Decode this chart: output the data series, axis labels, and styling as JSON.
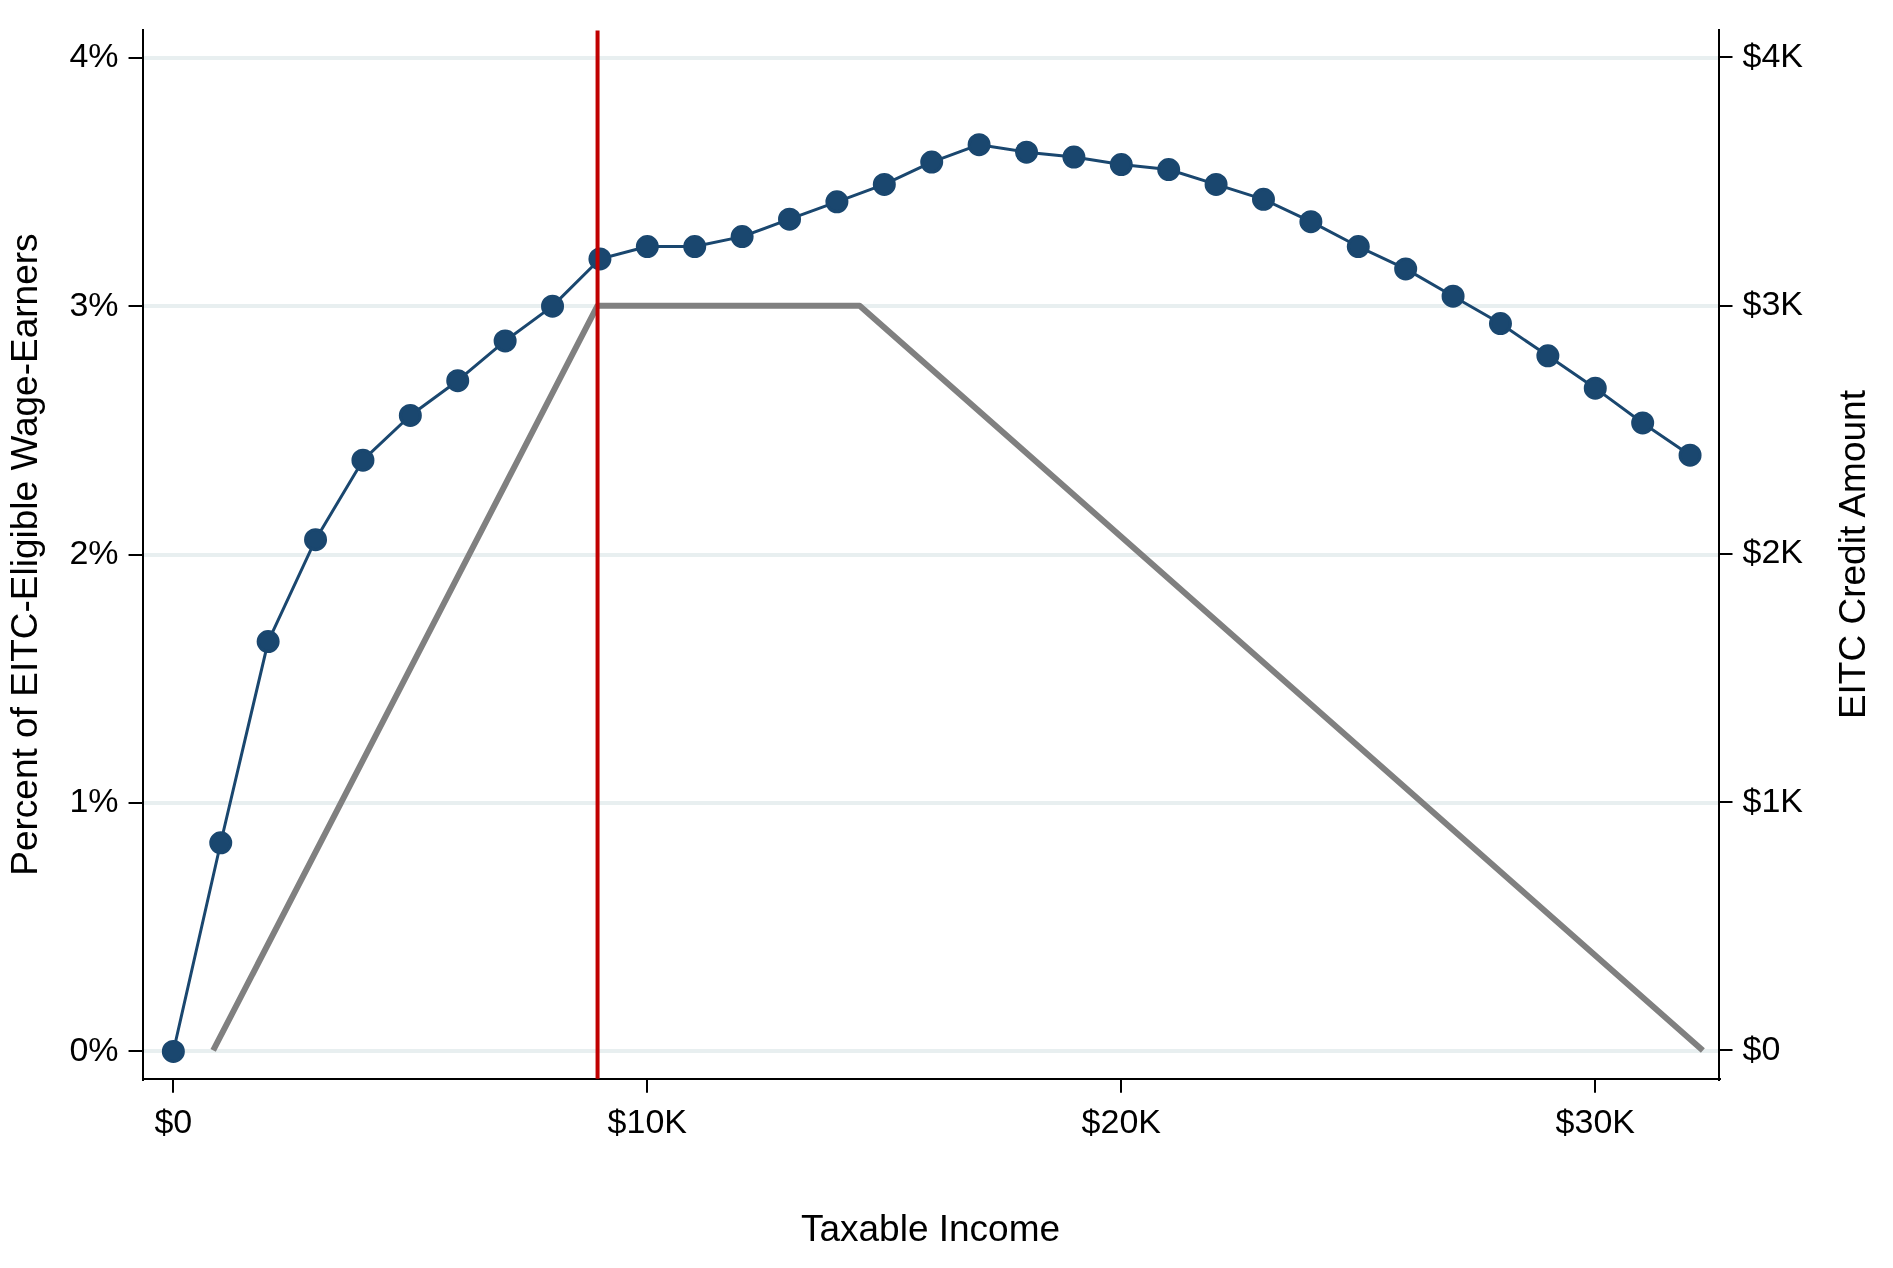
{
  "chart_data": {
    "type": "line",
    "xlabel": "Taxable Income",
    "ylabel": "Percent of EITC-Eligible Wage-Earners",
    "y2label": "EITC Credit Amount",
    "xlim": [
      -650,
      32600
    ],
    "ylim": [
      -0.11,
      4.11
    ],
    "y2lim": [
      -114,
      4109
    ],
    "xticks": [
      {
        "value": 0,
        "label": "$0"
      },
      {
        "value": 10000,
        "label": "$10K"
      },
      {
        "value": 20000,
        "label": "$20K"
      },
      {
        "value": 30000,
        "label": "$30K"
      }
    ],
    "yticks": [
      {
        "value": 0,
        "label": "0%"
      },
      {
        "value": 1,
        "label": "1%"
      },
      {
        "value": 2,
        "label": "2%"
      },
      {
        "value": 3,
        "label": "3%"
      },
      {
        "value": 4,
        "label": "4%"
      }
    ],
    "y2ticks": [
      {
        "value": 0,
        "label": "$0"
      },
      {
        "value": 1000,
        "label": "$1K"
      },
      {
        "value": 2000,
        "label": "$2K"
      },
      {
        "value": 3000,
        "label": "$3K"
      },
      {
        "value": 4000,
        "label": "$4K"
      }
    ],
    "grid": "y",
    "legend": false,
    "series": [
      {
        "marker": "circle",
        "color": "#1a476f",
        "x": [
          0,
          1000,
          2000,
          3000,
          4000,
          5000,
          6000,
          7000,
          8000,
          9000,
          10000,
          11000,
          12000,
          13000,
          14000,
          15000,
          16000,
          17000,
          18000,
          19000,
          20000,
          21000,
          22000,
          23000,
          24000,
          25000,
          26000,
          27000,
          28000,
          29000,
          30000,
          31000,
          32000
        ],
        "values": [
          0,
          0.84,
          1.65,
          2.06,
          2.38,
          2.56,
          2.7,
          2.86,
          3.0,
          3.19,
          3.24,
          3.24,
          3.28,
          3.35,
          3.42,
          3.49,
          3.58,
          3.65,
          3.62,
          3.6,
          3.57,
          3.55,
          3.49,
          3.43,
          3.34,
          3.24,
          3.15,
          3.04,
          2.93,
          2.8,
          2.67,
          2.53,
          2.4
        ]
      },
      {
        "marker": "none",
        "axis": "y2",
        "color": "#808080",
        "x": [
          840,
          8950,
          14480,
          32270
        ],
        "values": [
          0,
          3000,
          3000,
          0
        ]
      }
    ],
    "ref_lines": [
      {
        "axis": "x",
        "value": 8950,
        "color": "#c00000"
      }
    ]
  }
}
